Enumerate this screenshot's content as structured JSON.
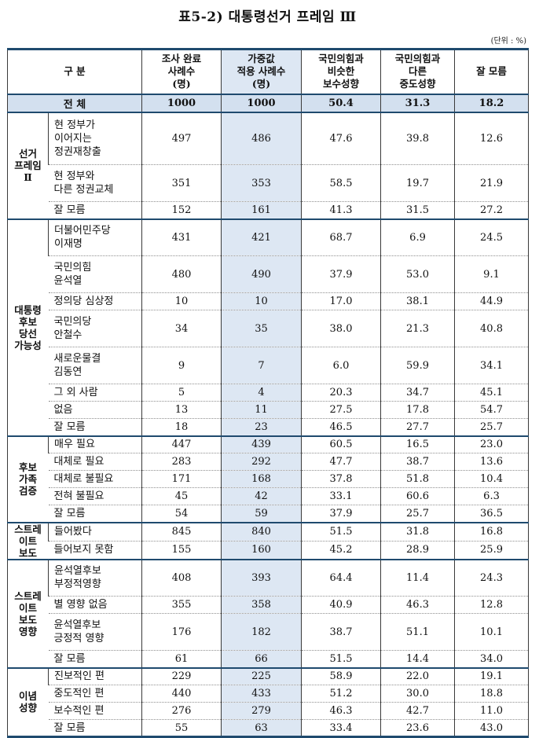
{
  "title": "표5-2) 대통령선거 프레임 Ⅲ",
  "unit_note": "(단위 : %)",
  "colors": {
    "highlight_column_blue": "#dde7f3",
    "total_row_blue": "#d3e0ef",
    "navy_border": "#1f4a6e"
  },
  "table": {
    "columns": [
      "구 분",
      "조사 완료\n사례수\n(명)",
      "가중값\n적용 사례수\n(명)",
      "국민의힘과\n비슷한\n보수성향",
      "국민의힘과\n다른\n중도성향",
      "잘 모름"
    ],
    "total_row": {
      "label": "전 체",
      "values": [
        "1000",
        "1000",
        "50.4",
        "31.3",
        "18.2"
      ]
    },
    "groups": [
      {
        "label": "선거\n프레임\nⅡ",
        "rows": [
          {
            "item": "현 정부가\n이어지는\n정권재창출",
            "values": [
              "497",
              "486",
              "47.6",
              "39.8",
              "12.6"
            ]
          },
          {
            "item": "현 정부와\n다른 정권교체",
            "values": [
              "351",
              "353",
              "58.5",
              "19.7",
              "21.9"
            ]
          },
          {
            "item": "잘 모름",
            "values": [
              "152",
              "161",
              "41.3",
              "31.5",
              "27.2"
            ]
          }
        ]
      },
      {
        "label": "대통령\n후보\n당선\n가능성",
        "rows": [
          {
            "item": "더불어민주당\n이재명",
            "values": [
              "431",
              "421",
              "68.7",
              "6.9",
              "24.5"
            ]
          },
          {
            "item": "국민의힘\n윤석열",
            "values": [
              "480",
              "490",
              "37.9",
              "53.0",
              "9.1"
            ]
          },
          {
            "item": "정의당 심상정",
            "values": [
              "10",
              "10",
              "17.0",
              "38.1",
              "44.9"
            ]
          },
          {
            "item": "국민의당\n안철수",
            "values": [
              "34",
              "35",
              "38.0",
              "21.3",
              "40.8"
            ]
          },
          {
            "item": "새로운물결\n김동연",
            "values": [
              "9",
              "7",
              "6.0",
              "59.9",
              "34.1"
            ]
          },
          {
            "item": "그 외 사람",
            "values": [
              "5",
              "4",
              "20.3",
              "34.7",
              "45.1"
            ]
          },
          {
            "item": "없음",
            "values": [
              "13",
              "11",
              "27.5",
              "17.8",
              "54.7"
            ]
          },
          {
            "item": "잘 모름",
            "values": [
              "18",
              "23",
              "46.5",
              "27.7",
              "25.7"
            ]
          }
        ]
      },
      {
        "label": "후보\n가족\n검증",
        "rows": [
          {
            "item": "매우 필요",
            "values": [
              "447",
              "439",
              "60.5",
              "16.5",
              "23.0"
            ]
          },
          {
            "item": "대체로 필요",
            "values": [
              "283",
              "292",
              "47.7",
              "38.7",
              "13.6"
            ]
          },
          {
            "item": "대체로 불필요",
            "values": [
              "171",
              "168",
              "37.8",
              "51.8",
              "10.4"
            ]
          },
          {
            "item": "전혀 불필요",
            "values": [
              "45",
              "42",
              "33.1",
              "60.6",
              "6.3"
            ]
          },
          {
            "item": "잘 모름",
            "values": [
              "54",
              "59",
              "37.9",
              "25.7",
              "36.5"
            ]
          }
        ]
      },
      {
        "label": "스트레\n이트\n보도",
        "rows": [
          {
            "item": "들어봤다",
            "values": [
              "845",
              "840",
              "51.5",
              "31.8",
              "16.8"
            ]
          },
          {
            "item": "들어보지 못함",
            "values": [
              "155",
              "160",
              "45.2",
              "28.9",
              "25.9"
            ]
          }
        ]
      },
      {
        "label": "스트레\n이트\n보도\n영향",
        "rows": [
          {
            "item": "윤석열후보\n부정적영향",
            "values": [
              "408",
              "393",
              "64.4",
              "11.4",
              "24.3"
            ]
          },
          {
            "item": "별 영향 없음",
            "values": [
              "355",
              "358",
              "40.9",
              "46.3",
              "12.8"
            ]
          },
          {
            "item": "윤석열후보\n긍정적 영향",
            "values": [
              "176",
              "182",
              "38.7",
              "51.1",
              "10.1"
            ]
          },
          {
            "item": "잘 모름",
            "values": [
              "61",
              "66",
              "51.5",
              "14.4",
              "34.0"
            ]
          }
        ]
      },
      {
        "label": "이념\n성향",
        "rows": [
          {
            "item": "진보적인 편",
            "values": [
              "229",
              "225",
              "58.9",
              "22.0",
              "19.1"
            ]
          },
          {
            "item": "중도적인 편",
            "values": [
              "440",
              "433",
              "51.2",
              "30.0",
              "18.8"
            ]
          },
          {
            "item": "보수적인 편",
            "values": [
              "276",
              "279",
              "46.3",
              "42.7",
              "11.0"
            ]
          },
          {
            "item": "잘 모름",
            "values": [
              "55",
              "63",
              "33.4",
              "23.6",
              "43.0"
            ]
          }
        ]
      }
    ]
  }
}
